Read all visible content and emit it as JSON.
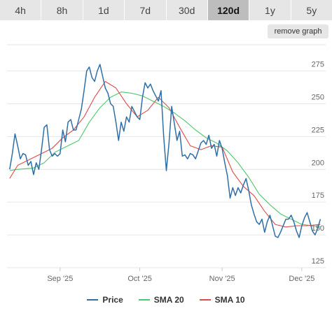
{
  "tabs": [
    {
      "label": "4h",
      "active": false
    },
    {
      "label": "8h",
      "active": false
    },
    {
      "label": "1d",
      "active": false
    },
    {
      "label": "7d",
      "active": false
    },
    {
      "label": "30d",
      "active": false
    },
    {
      "label": "120d",
      "active": true
    },
    {
      "label": "1y",
      "active": false
    },
    {
      "label": "5y",
      "active": false
    }
  ],
  "remove_graph_label": "remove graph",
  "colors": {
    "price": "#2f6fa8",
    "sma20": "#4dc86a",
    "sma10": "#e04b48",
    "grid": "#e6e6e6",
    "axis_text": "#666666"
  },
  "chart_data": {
    "type": "line",
    "title": "",
    "xlabel": "",
    "ylabel": "",
    "ylim": [
      125,
      295
    ],
    "y_ticks": [
      125,
      150,
      175,
      200,
      225,
      250,
      275
    ],
    "x_ticks": [
      {
        "label": "Sep '25",
        "x": "2025-09-01"
      },
      {
        "label": "Oct '25",
        "x": "2025-10-01"
      },
      {
        "label": "Nov '25",
        "x": "2025-11-01"
      },
      {
        "label": "Dec '25",
        "x": "2025-12-01"
      }
    ],
    "xlim": [
      "2025-08-12",
      "2025-12-10"
    ],
    "grid": true,
    "legend_position": "bottom",
    "series": [
      {
        "name": "Price",
        "color": "#2f6fa8",
        "points": [
          [
            "2025-08-13",
            200
          ],
          [
            "2025-08-14",
            212
          ],
          [
            "2025-08-15",
            227
          ],
          [
            "2025-08-16",
            218
          ],
          [
            "2025-08-17",
            208
          ],
          [
            "2025-08-18",
            212
          ],
          [
            "2025-08-19",
            211
          ],
          [
            "2025-08-20",
            203
          ],
          [
            "2025-08-21",
            206
          ],
          [
            "2025-08-22",
            196
          ],
          [
            "2025-08-23",
            205
          ],
          [
            "2025-08-24",
            200
          ],
          [
            "2025-08-25",
            215
          ],
          [
            "2025-08-26",
            232
          ],
          [
            "2025-08-27",
            234
          ],
          [
            "2025-08-28",
            215
          ],
          [
            "2025-08-29",
            210
          ],
          [
            "2025-08-30",
            212
          ],
          [
            "2025-08-31",
            210
          ],
          [
            "2025-09-01",
            212
          ],
          [
            "2025-09-02",
            230
          ],
          [
            "2025-09-03",
            221
          ],
          [
            "2025-09-04",
            236
          ],
          [
            "2025-09-05",
            238
          ],
          [
            "2025-09-06",
            230
          ],
          [
            "2025-09-07",
            230
          ],
          [
            "2025-09-08",
            238
          ],
          [
            "2025-09-09",
            246
          ],
          [
            "2025-09-10",
            260
          ],
          [
            "2025-09-11",
            275
          ],
          [
            "2025-09-12",
            278
          ],
          [
            "2025-09-13",
            270
          ],
          [
            "2025-09-14",
            267
          ],
          [
            "2025-09-15",
            275
          ],
          [
            "2025-09-16",
            280
          ],
          [
            "2025-09-17",
            271
          ],
          [
            "2025-09-18",
            262
          ],
          [
            "2025-09-19",
            258
          ],
          [
            "2025-09-20",
            250
          ],
          [
            "2025-09-21",
            248
          ],
          [
            "2025-09-22",
            236
          ],
          [
            "2025-09-23",
            222
          ],
          [
            "2025-09-24",
            236
          ],
          [
            "2025-09-25",
            229
          ],
          [
            "2025-09-26",
            240
          ],
          [
            "2025-09-27",
            236
          ],
          [
            "2025-09-28",
            248
          ],
          [
            "2025-09-29",
            244
          ],
          [
            "2025-09-30",
            240
          ],
          [
            "2025-10-01",
            238
          ],
          [
            "2025-10-02",
            255
          ],
          [
            "2025-10-03",
            266
          ],
          [
            "2025-10-04",
            262
          ],
          [
            "2025-10-05",
            265
          ],
          [
            "2025-10-06",
            260
          ],
          [
            "2025-10-07",
            256
          ],
          [
            "2025-10-08",
            252
          ],
          [
            "2025-10-09",
            260
          ],
          [
            "2025-10-10",
            225
          ],
          [
            "2025-10-11",
            199
          ],
          [
            "2025-10-12",
            220
          ],
          [
            "2025-10-13",
            248
          ],
          [
            "2025-10-14",
            235
          ],
          [
            "2025-10-15",
            222
          ],
          [
            "2025-10-16",
            229
          ],
          [
            "2025-10-17",
            210
          ],
          [
            "2025-10-18",
            211
          ],
          [
            "2025-10-19",
            208
          ],
          [
            "2025-10-20",
            212
          ],
          [
            "2025-10-21",
            211
          ],
          [
            "2025-10-22",
            208
          ],
          [
            "2025-10-23",
            214
          ],
          [
            "2025-10-24",
            220
          ],
          [
            "2025-10-25",
            222
          ],
          [
            "2025-10-26",
            219
          ],
          [
            "2025-10-27",
            226
          ],
          [
            "2025-10-28",
            216
          ],
          [
            "2025-10-29",
            219
          ],
          [
            "2025-10-30",
            210
          ],
          [
            "2025-10-31",
            222
          ],
          [
            "2025-11-01",
            216
          ],
          [
            "2025-11-02",
            205
          ],
          [
            "2025-11-03",
            195
          ],
          [
            "2025-11-04",
            178
          ],
          [
            "2025-11-05",
            186
          ],
          [
            "2025-11-06",
            180
          ],
          [
            "2025-11-07",
            186
          ],
          [
            "2025-11-08",
            182
          ],
          [
            "2025-11-09",
            188
          ],
          [
            "2025-11-10",
            193
          ],
          [
            "2025-11-11",
            184
          ],
          [
            "2025-11-12",
            173
          ],
          [
            "2025-11-13",
            166
          ],
          [
            "2025-11-14",
            160
          ],
          [
            "2025-11-15",
            158
          ],
          [
            "2025-11-16",
            162
          ],
          [
            "2025-11-17",
            152
          ],
          [
            "2025-11-18",
            160
          ],
          [
            "2025-11-19",
            165
          ],
          [
            "2025-11-20",
            157
          ],
          [
            "2025-11-21",
            149
          ],
          [
            "2025-11-22",
            148
          ],
          [
            "2025-11-23",
            152
          ],
          [
            "2025-11-24",
            157
          ],
          [
            "2025-11-25",
            162
          ],
          [
            "2025-11-26",
            162
          ],
          [
            "2025-11-27",
            165
          ],
          [
            "2025-11-28",
            160
          ],
          [
            "2025-11-29",
            153
          ],
          [
            "2025-11-30",
            148
          ],
          [
            "2025-12-01",
            157
          ],
          [
            "2025-12-02",
            163
          ],
          [
            "2025-12-03",
            167
          ],
          [
            "2025-12-04",
            160
          ],
          [
            "2025-12-05",
            153
          ],
          [
            "2025-12-06",
            150
          ],
          [
            "2025-12-07",
            155
          ],
          [
            "2025-12-08",
            162
          ]
        ]
      },
      {
        "name": "SMA 20",
        "color": "#4dc86a",
        "points": [
          [
            "2025-08-13",
            199
          ],
          [
            "2025-08-16",
            200
          ],
          [
            "2025-08-22",
            201
          ],
          [
            "2025-08-26",
            205
          ],
          [
            "2025-08-30",
            213
          ],
          [
            "2025-09-04",
            218
          ],
          [
            "2025-09-08",
            222
          ],
          [
            "2025-09-12",
            236
          ],
          [
            "2025-09-16",
            247
          ],
          [
            "2025-09-20",
            255
          ],
          [
            "2025-09-24",
            259
          ],
          [
            "2025-09-28",
            258
          ],
          [
            "2025-10-02",
            256
          ],
          [
            "2025-10-06",
            252
          ],
          [
            "2025-10-10",
            248
          ],
          [
            "2025-10-14",
            243
          ],
          [
            "2025-10-18",
            237
          ],
          [
            "2025-10-22",
            230
          ],
          [
            "2025-10-26",
            224
          ],
          [
            "2025-10-30",
            220
          ],
          [
            "2025-11-03",
            214
          ],
          [
            "2025-11-07",
            205
          ],
          [
            "2025-11-11",
            194
          ],
          [
            "2025-11-15",
            181
          ],
          [
            "2025-11-19",
            173
          ],
          [
            "2025-11-23",
            166
          ],
          [
            "2025-11-27",
            162
          ],
          [
            "2025-12-01",
            158
          ],
          [
            "2025-12-05",
            157
          ],
          [
            "2025-12-08",
            156
          ]
        ]
      },
      {
        "name": "SMA 10",
        "color": "#e04b48",
        "points": [
          [
            "2025-08-13",
            193
          ],
          [
            "2025-08-16",
            203
          ],
          [
            "2025-08-21",
            208
          ],
          [
            "2025-08-25",
            212
          ],
          [
            "2025-08-29",
            216
          ],
          [
            "2025-09-02",
            224
          ],
          [
            "2025-09-06",
            230
          ],
          [
            "2025-09-10",
            240
          ],
          [
            "2025-09-14",
            255
          ],
          [
            "2025-09-18",
            267
          ],
          [
            "2025-09-22",
            262
          ],
          [
            "2025-09-26",
            250
          ],
          [
            "2025-09-30",
            240
          ],
          [
            "2025-10-04",
            245
          ],
          [
            "2025-10-08",
            255
          ],
          [
            "2025-10-12",
            247
          ],
          [
            "2025-10-16",
            232
          ],
          [
            "2025-10-20",
            218
          ],
          [
            "2025-10-24",
            215
          ],
          [
            "2025-10-28",
            218
          ],
          [
            "2025-11-01",
            217
          ],
          [
            "2025-11-05",
            198
          ],
          [
            "2025-11-09",
            187
          ],
          [
            "2025-11-13",
            180
          ],
          [
            "2025-11-17",
            168
          ],
          [
            "2025-11-21",
            158
          ],
          [
            "2025-11-25",
            156
          ],
          [
            "2025-11-29",
            157
          ],
          [
            "2025-12-03",
            157
          ],
          [
            "2025-12-08",
            158
          ]
        ]
      }
    ]
  }
}
